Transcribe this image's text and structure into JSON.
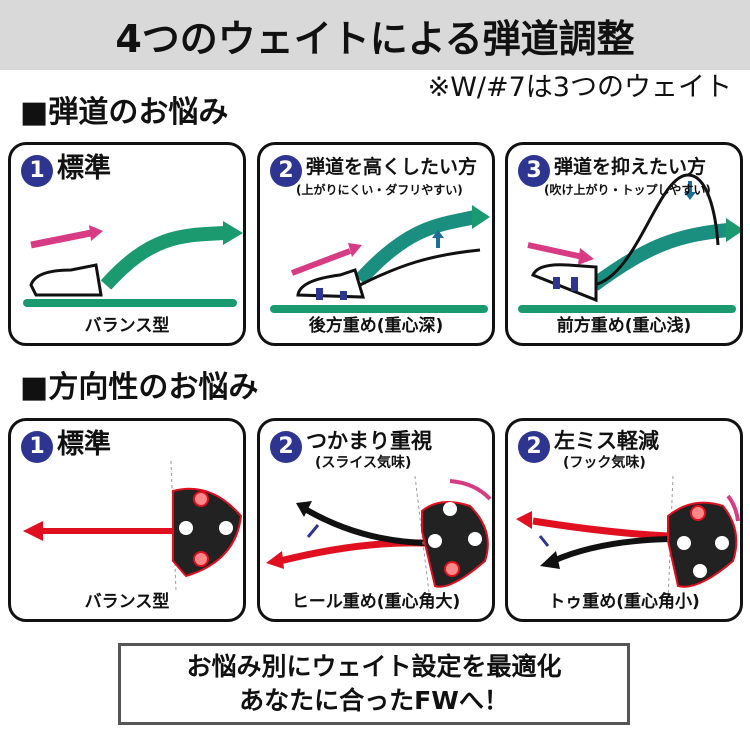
{
  "header": {
    "title": "4つのウェイトによる弾道調整",
    "note": "※W/#7は3つのウェイト"
  },
  "trajectory": {
    "heading": "■弾道のお悩み",
    "panels": [
      {
        "num": "1",
        "title": "標準",
        "subtitle": "",
        "caption": "バランス型"
      },
      {
        "num": "2",
        "title": "弾道を高くしたい方",
        "subtitle": "(上がりにくい・ダフリやすい)",
        "caption": "後方重め(重心深)"
      },
      {
        "num": "3",
        "title": "弾道を抑えたい方",
        "subtitle": "(吹け上がり・トップしやすい)",
        "caption": "前方重め(重心浅)"
      }
    ]
  },
  "direction": {
    "heading": "■方向性のお悩み",
    "panels": [
      {
        "num": "1",
        "title": "標準",
        "subtitle": "",
        "caption": "バランス型"
      },
      {
        "num": "2",
        "title": "つかまり重視",
        "subtitle": "(スライス気味)",
        "caption": "ヒール重め(重心角大)"
      },
      {
        "num": "2",
        "title": "左ミス軽減",
        "subtitle": "(フック気味)",
        "caption": "トゥ重め(重心角小)"
      }
    ]
  },
  "footer": {
    "line1": "お悩み別にウェイト設定を最適化",
    "line2": "あなたに合ったFWへ！"
  },
  "colors": {
    "num_badge": "#2e3591",
    "ground": "#1a9a6e",
    "pink_arrow": "#d63b84",
    "red_arrow": "#e01020"
  }
}
